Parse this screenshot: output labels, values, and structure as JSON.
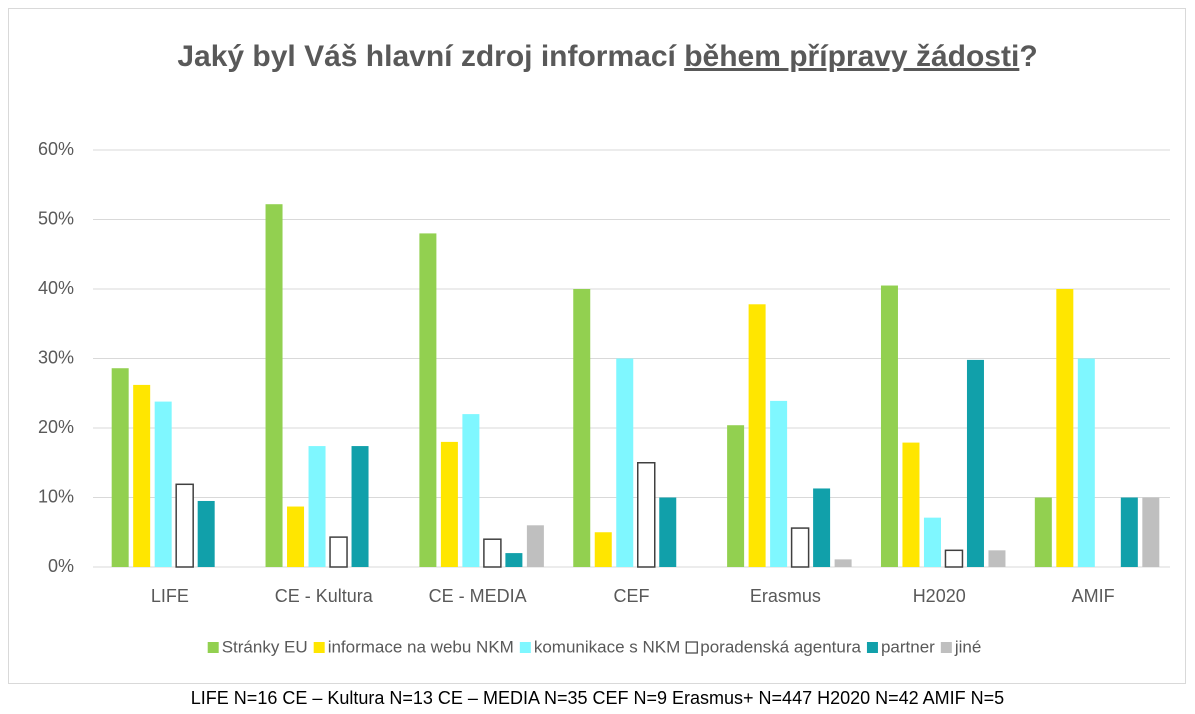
{
  "chart_data": {
    "type": "bar",
    "title": [
      "Jaký byl Váš hlavní zdroj informací ",
      "během přípravy žádosti",
      "?"
    ],
    "categories": [
      "LIFE",
      "CE - Kultura",
      "CE - MEDIA",
      "CEF",
      "Erasmus",
      "H2020",
      "AMIF"
    ],
    "series": [
      {
        "name": "Stránky EU",
        "color": "#92d050",
        "values": [
          28.6,
          52.2,
          48,
          40,
          20.4,
          40.5,
          10
        ]
      },
      {
        "name": "informace na webu NKM",
        "color": "#ffe600",
        "values": [
          26.2,
          8.7,
          18,
          5,
          37.8,
          17.9,
          40
        ]
      },
      {
        "name": "komunikace s NKM",
        "color": "#7ff7ff",
        "values": [
          23.8,
          17.4,
          22,
          30,
          23.9,
          7.1,
          30
        ]
      },
      {
        "name": "poradenská agentura",
        "color": "#ffffff",
        "values": [
          11.9,
          4.3,
          4,
          15,
          5.6,
          2.4,
          0
        ]
      },
      {
        "name": "partner",
        "color": "#11a0aa",
        "values": [
          9.5,
          17.4,
          2,
          10,
          11.3,
          29.8,
          10
        ]
      },
      {
        "name": "jiné",
        "color": "#bfbfbf",
        "values": [
          0,
          0,
          6,
          0,
          1.1,
          2.4,
          10
        ]
      }
    ],
    "ylim": [
      0,
      60
    ],
    "yticks": [
      {
        "value": 0,
        "label": "0%"
      },
      {
        "value": 10,
        "label": "10%"
      },
      {
        "value": 20,
        "label": "20%"
      },
      {
        "value": 30,
        "label": "30%"
      },
      {
        "value": 40,
        "label": "40%"
      },
      {
        "value": 50,
        "label": "50%"
      },
      {
        "value": 60,
        "label": "60%"
      }
    ],
    "grid": true,
    "legend": "bottom",
    "note": "LIFE N=16 CE – Kultura N=13 CE – MEDIA N=35 CEF N=9 Erasmus+ N=447 H2020 N=42 AMIF N=5"
  }
}
